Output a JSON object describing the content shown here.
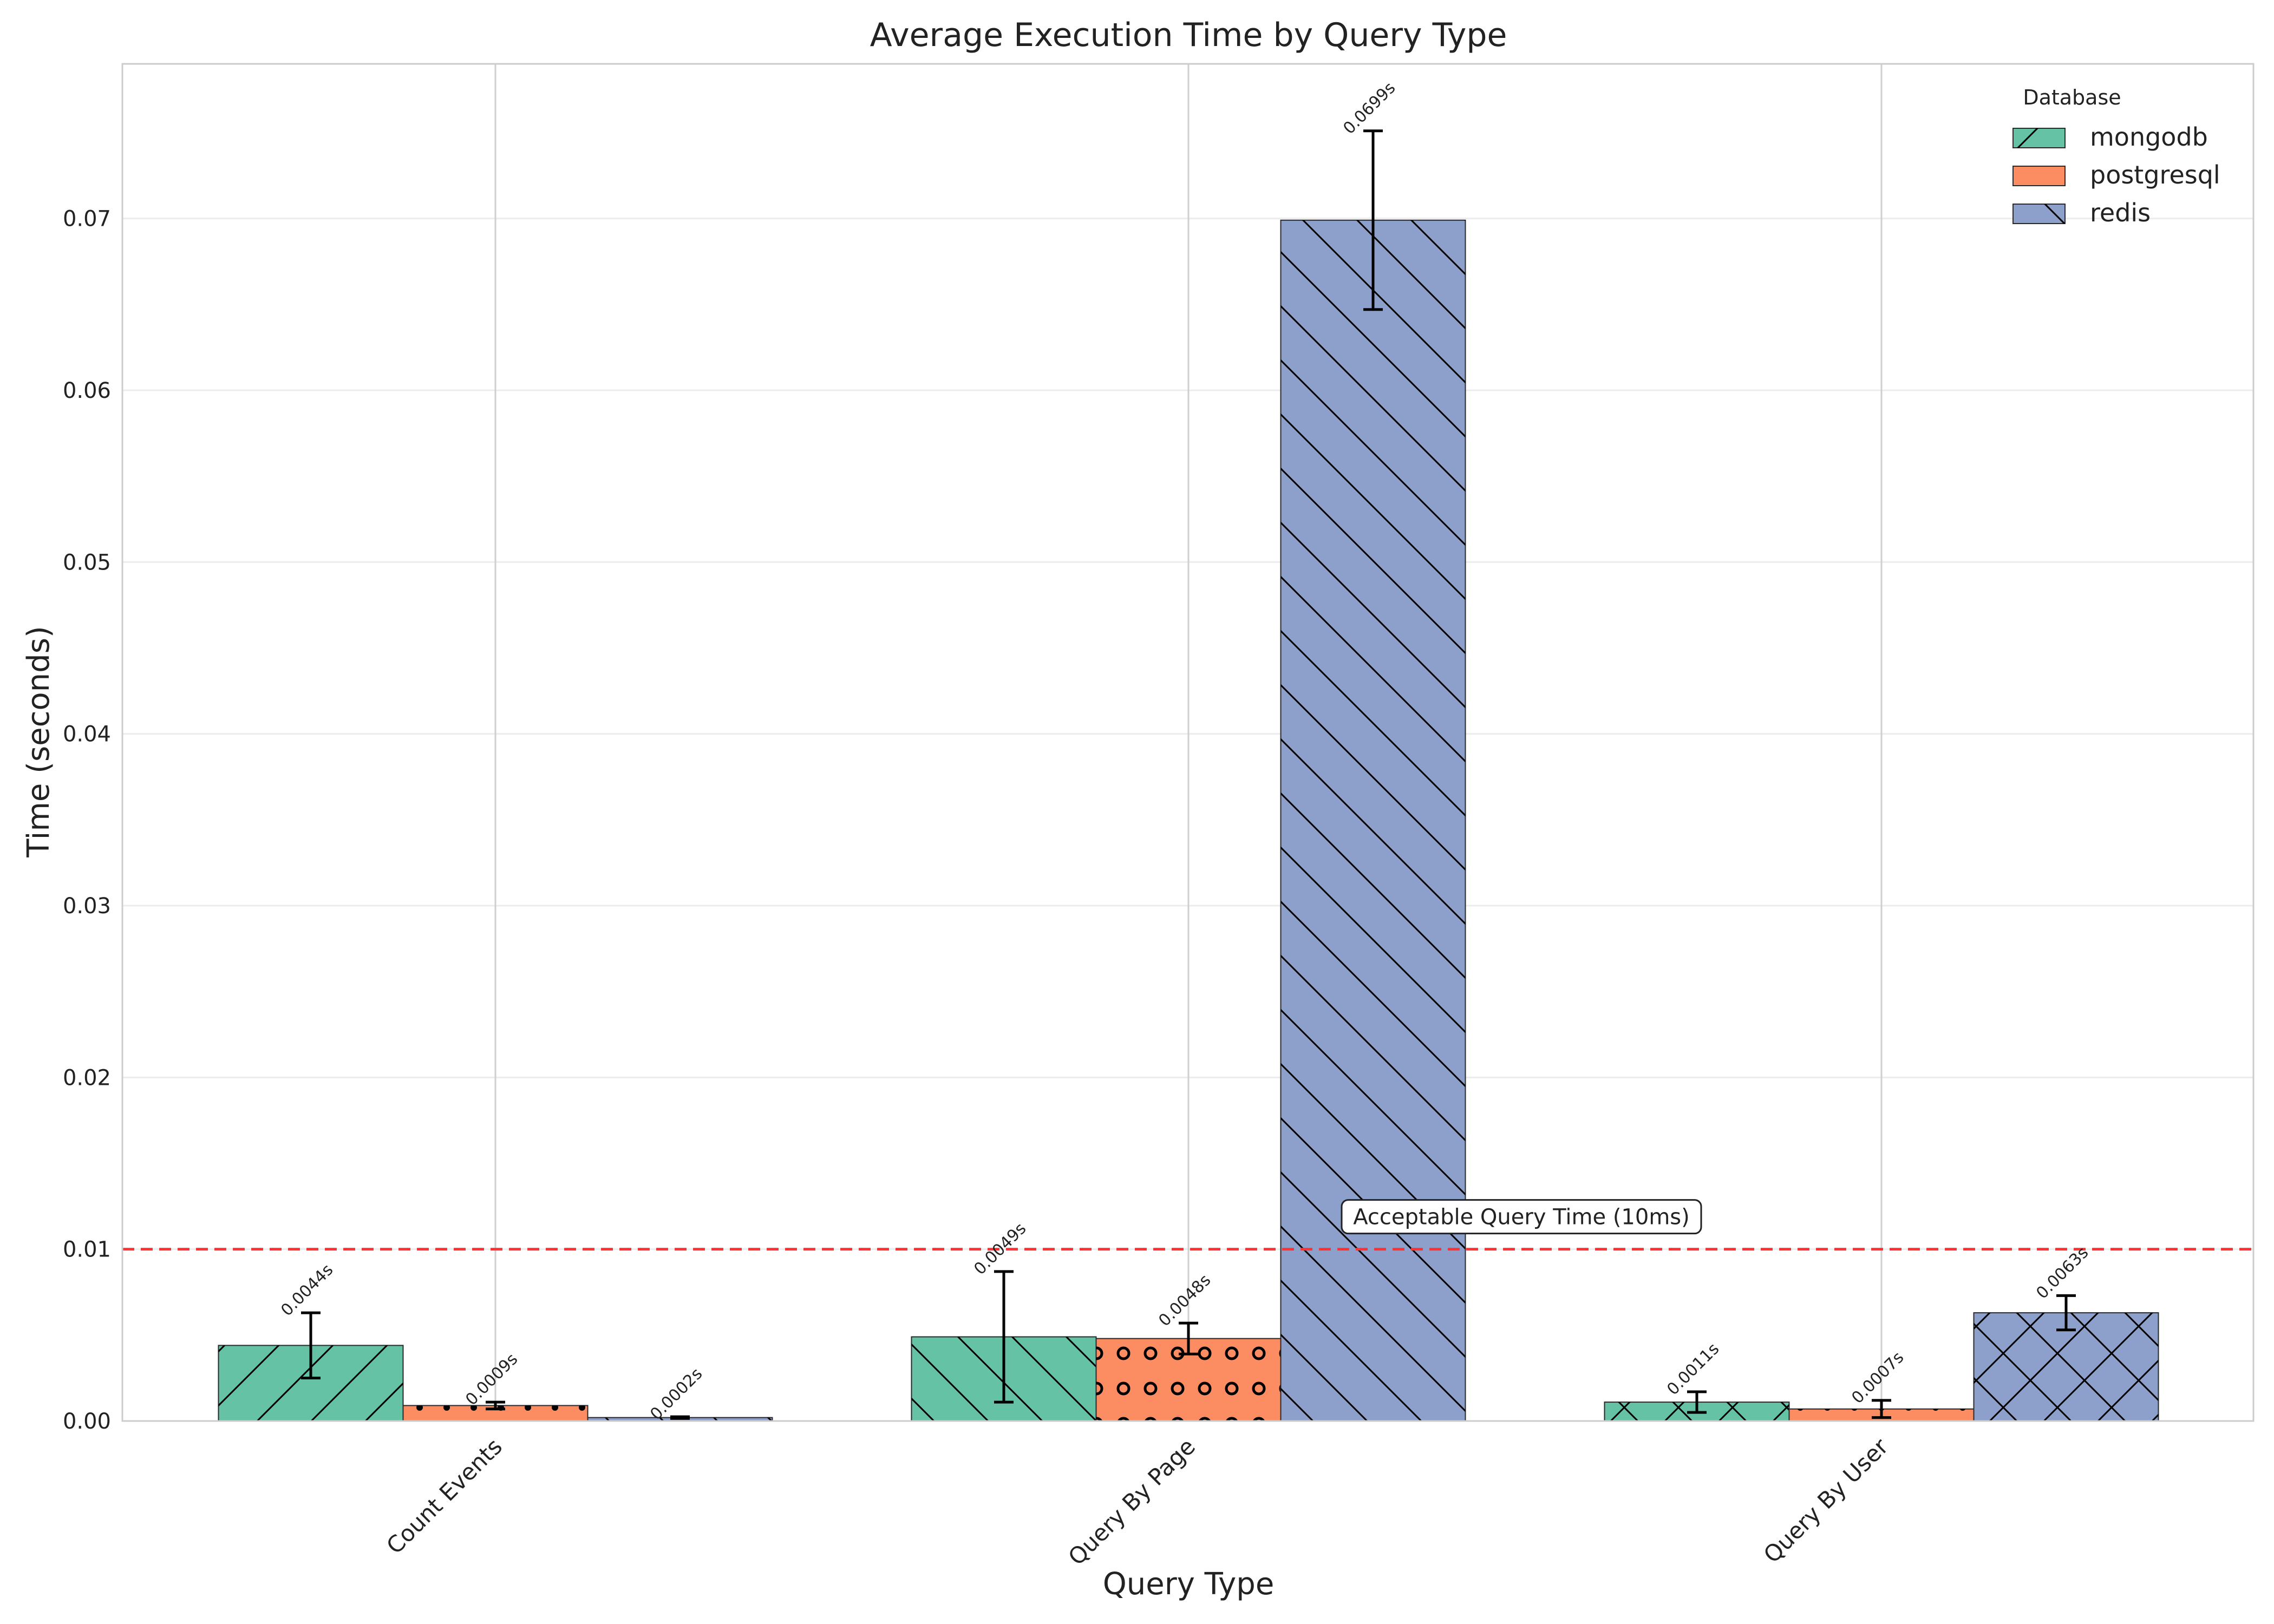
{
  "chart_data": {
    "type": "bar",
    "title": "Average Execution Time by Query Type",
    "xlabel": "Query Type",
    "ylabel": "Time (seconds)",
    "categories": [
      "Count Events",
      "Query By Page",
      "Query By User"
    ],
    "series": [
      {
        "name": "mongodb",
        "color": "#66c2a5",
        "values": [
          0.0044,
          0.0049,
          0.0011
        ],
        "errors": [
          0.0019,
          0.0038,
          0.0006
        ],
        "labels": [
          "0.0044s",
          "0.0049s",
          "0.0011s"
        ]
      },
      {
        "name": "postgresql",
        "color": "#fc8d62",
        "values": [
          0.0009,
          0.0048,
          0.0007
        ],
        "errors": [
          0.0002,
          0.0009,
          0.0005
        ],
        "labels": [
          "0.0009s",
          "0.0048s",
          "0.0007s"
        ]
      },
      {
        "name": "redis",
        "color": "#8da0cb",
        "values": [
          0.0002,
          0.0699,
          0.0063
        ],
        "errors": [
          5e-05,
          0.0052,
          0.001
        ],
        "labels": [
          "0.0002s",
          "0.0699s",
          "0.0063s"
        ]
      }
    ],
    "ylim": [
      0,
      0.079
    ],
    "yticks": [
      0.0,
      0.01,
      0.02,
      0.03,
      0.04,
      0.05,
      0.06,
      0.07
    ],
    "ytick_labels": [
      "0.00",
      "0.01",
      "0.02",
      "0.03",
      "0.04",
      "0.05",
      "0.06",
      "0.07"
    ],
    "grid": true,
    "legend": {
      "title": "Database",
      "position": "top-right"
    },
    "reference_line": {
      "value": 0.01,
      "label": "Acceptable Query Time (10ms)",
      "color": "#ff3333",
      "style": "dashed"
    }
  }
}
